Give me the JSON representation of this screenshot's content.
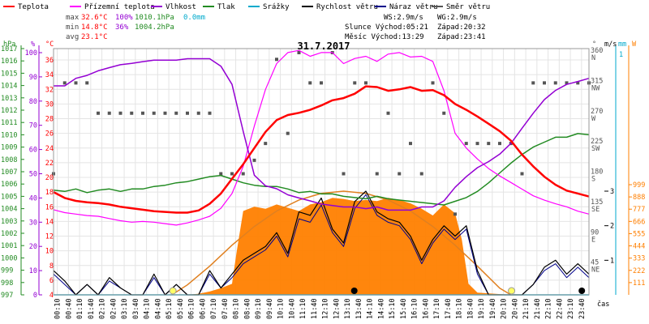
{
  "chart_data": {
    "type": "line",
    "title": "31.7.2017",
    "legend": [
      {
        "label": "Teplota",
        "color": "#ff0000"
      },
      {
        "label": "Přízemní teplota",
        "color": "#ff00ff"
      },
      {
        "label": "Vlhkost",
        "color": "#9400d3"
      },
      {
        "label": "Tlak",
        "color": "#228b22"
      },
      {
        "label": "Srážky",
        "color": "#00aacc"
      },
      {
        "label": "Rychlost větru",
        "color": "#000000"
      },
      {
        "label": "Náraz větru",
        "color": "#00008b"
      },
      {
        "label": "Směr větru",
        "color": "#555555"
      }
    ],
    "stats": {
      "max_label": "max",
      "max_temp": "32.6°C",
      "max_hum": "100%",
      "max_press": "1010.1hPa",
      "max_rain": "0.0mm",
      "min_label": "min",
      "min_temp": "14.8°C",
      "min_hum": "36%",
      "min_press": "1004.2hPa",
      "avg_label": "avg",
      "avg_temp": "23.1°C",
      "ws": "WS:2.9m/s",
      "wg": "WG:2.9m/s",
      "sun": "Slunce Východ:05:21",
      "sun_set": "Západ:20:32",
      "moon": "Měsíc Východ:13:29",
      "moon_set": "Západ:23:41"
    },
    "axes": {
      "hpa_unit": "hPa",
      "pct_unit": "%",
      "c_unit": "°C",
      "deg_unit": "°",
      "ms_unit": "m/s",
      "mm_unit": "mm",
      "w_unit": "W",
      "hpa": [
        997,
        998,
        999,
        1000,
        1001,
        1002,
        1003,
        1004,
        1005,
        1006,
        1007,
        1008,
        1009,
        1010,
        1011,
        1012,
        1013,
        1014,
        1015,
        1016,
        1017
      ],
      "pct": [
        0,
        10,
        20,
        30,
        40,
        50,
        60,
        70,
        80,
        90,
        100
      ],
      "temp": [
        4,
        6,
        8,
        10,
        12,
        14,
        16,
        18,
        20,
        22,
        24,
        26,
        28,
        30,
        32,
        34,
        36
      ],
      "dir": [
        {
          "v": 45,
          "lbl": "45",
          "cd": "NE"
        },
        {
          "v": 90,
          "lbl": "90",
          "cd": "E"
        },
        {
          "v": 135,
          "lbl": "135",
          "cd": "SE"
        },
        {
          "v": 180,
          "lbl": "180",
          "cd": "S"
        },
        {
          "v": 225,
          "lbl": "225",
          "cd": "SW"
        },
        {
          "v": 270,
          "lbl": "270",
          "cd": "W"
        },
        {
          "v": 315,
          "lbl": "315",
          "cd": "NW"
        },
        {
          "v": 360,
          "lbl": "360",
          "cd": "N"
        }
      ],
      "ms": [
        1,
        2,
        3
      ],
      "mm_top": "1",
      "solar": [
        111,
        222,
        333,
        444,
        555,
        666,
        777,
        888,
        999
      ],
      "x_ticks": [
        "00:10",
        "00:40",
        "01:10",
        "01:40",
        "02:10",
        "02:40",
        "03:10",
        "03:40",
        "04:10",
        "04:40",
        "05:10",
        "05:40",
        "06:10",
        "06:40",
        "07:10",
        "07:40",
        "08:10",
        "08:40",
        "09:10",
        "09:40",
        "10:10",
        "10:40",
        "11:10",
        "11:40",
        "12:10",
        "12:40",
        "13:10",
        "13:40",
        "14:10",
        "14:40",
        "15:10",
        "15:40",
        "16:10",
        "16:40",
        "17:10",
        "17:40",
        "18:10",
        "18:40",
        "19:10",
        "19:40",
        "20:10",
        "20:40",
        "21:10",
        "21:40",
        "22:10",
        "22:40",
        "23:10",
        "23:40"
      ],
      "x_label": "čas"
    },
    "series": [
      {
        "name": "Teplota",
        "color": "#ff0000",
        "unit": "°C",
        "x": [
          0,
          0.5,
          1,
          1.5,
          2,
          2.5,
          3,
          3.5,
          4,
          4.5,
          5,
          5.5,
          6,
          6.5,
          7,
          7.5,
          8,
          8.5,
          9,
          9.5,
          10,
          10.5,
          11,
          11.5,
          12,
          12.5,
          13,
          13.5,
          14,
          14.5,
          15,
          15.5,
          16,
          16.5,
          17,
          17.5,
          18,
          18.5,
          19,
          19.5,
          20,
          20.5,
          21,
          21.5,
          22,
          22.5,
          23,
          23.5,
          24
        ],
        "y": [
          18.0,
          17.2,
          16.8,
          16.6,
          16.5,
          16.3,
          16.0,
          15.8,
          15.6,
          15.4,
          15.3,
          15.2,
          15.2,
          15.5,
          16.4,
          17.8,
          19.8,
          21.8,
          24.0,
          26.2,
          27.8,
          28.5,
          28.8,
          29.2,
          29.8,
          30.5,
          30.8,
          31.4,
          32.4,
          32.3,
          31.8,
          32.0,
          32.3,
          31.8,
          31.9,
          31.2,
          30.0,
          29.2,
          28.3,
          27.3,
          26.3,
          25.0,
          23.1,
          21.5,
          20.1,
          19.0,
          18.2,
          17.8,
          17.4
        ]
      },
      {
        "name": "Přízemní teplota",
        "color": "#ff00ff",
        "unit": "°C",
        "x": [
          0,
          0.5,
          1,
          1.5,
          2,
          2.5,
          3,
          3.5,
          4,
          4.5,
          5,
          5.5,
          6,
          6.5,
          7,
          7.5,
          8,
          8.5,
          9,
          9.5,
          10,
          10.5,
          11,
          11.5,
          12,
          12.5,
          13,
          13.5,
          14,
          14.5,
          15,
          15.5,
          16,
          16.5,
          17,
          17.5,
          18,
          18.5,
          19,
          19.5,
          20,
          20.5,
          21,
          21.5,
          22,
          22.5,
          23,
          23.5,
          24
        ],
        "y": [
          15.6,
          15.2,
          15.0,
          14.8,
          14.7,
          14.4,
          14.1,
          13.9,
          14.0,
          13.9,
          13.7,
          13.5,
          13.8,
          14.2,
          14.7,
          15.8,
          17.8,
          21.5,
          27.0,
          32.0,
          35.5,
          37.0,
          37.3,
          36.5,
          37.0,
          37.0,
          35.5,
          36.2,
          36.5,
          35.8,
          36.8,
          37.0,
          36.4,
          36.5,
          35.8,
          31.8,
          26.0,
          24.0,
          22.5,
          21.2,
          20.2,
          19.3,
          18.4,
          17.5,
          16.9,
          16.4,
          16.0,
          15.4,
          15.0
        ]
      },
      {
        "name": "Vlhkost",
        "color": "#9400d3",
        "unit": "%",
        "x": [
          0,
          0.5,
          1,
          1.5,
          2,
          2.5,
          3,
          3.5,
          4,
          4.5,
          5,
          5.5,
          6,
          6.5,
          7,
          7.5,
          8,
          8.5,
          9,
          9.5,
          10,
          10.5,
          11,
          11.5,
          12,
          12.5,
          13,
          13.5,
          14,
          14.5,
          15,
          15.5,
          16,
          16.5,
          17,
          17.5,
          18,
          18.5,
          19,
          19.5,
          20,
          20.5,
          21,
          21.5,
          22,
          22.5,
          23,
          23.5,
          24
        ],
        "y": [
          86.3,
          86.3,
          89.4,
          90.6,
          92.5,
          93.8,
          95.0,
          95.6,
          96.3,
          96.9,
          96.9,
          96.9,
          97.5,
          97.5,
          97.5,
          94.4,
          86.9,
          67.5,
          49.4,
          45.0,
          43.8,
          41.3,
          40.0,
          38.8,
          37.5,
          36.9,
          36.3,
          36.3,
          35.6,
          36.3,
          35.0,
          35.0,
          35.0,
          36.3,
          36.3,
          38.8,
          44.4,
          48.8,
          52.5,
          55.0,
          58.1,
          62.5,
          68.8,
          75.0,
          80.6,
          84.4,
          86.9,
          88.1,
          89.4
        ]
      },
      {
        "name": "Tlak",
        "color": "#228b22",
        "unit": "hPa",
        "x": [
          0,
          0.5,
          1,
          1.5,
          2,
          2.5,
          3,
          3.5,
          4,
          4.5,
          5,
          5.5,
          6,
          6.5,
          7,
          7.5,
          8,
          8.5,
          9,
          9.5,
          10,
          10.5,
          11,
          11.5,
          12,
          12.5,
          13,
          13.5,
          14,
          14.5,
          15,
          15.5,
          16,
          16.5,
          17,
          17.5,
          18,
          18.5,
          19,
          19.5,
          20,
          20.5,
          21,
          21.5,
          22,
          22.5,
          23,
          23.5,
          24
        ],
        "y": [
          1005.5,
          1005.4,
          1005.6,
          1005.3,
          1005.5,
          1005.6,
          1005.4,
          1005.6,
          1005.6,
          1005.8,
          1005.9,
          1006.1,
          1006.2,
          1006.4,
          1006.6,
          1006.7,
          1006.4,
          1006.1,
          1005.9,
          1005.8,
          1005.8,
          1005.6,
          1005.3,
          1005.4,
          1005.2,
          1005.2,
          1005.0,
          1004.9,
          1004.8,
          1005.0,
          1004.8,
          1004.7,
          1004.6,
          1004.5,
          1004.4,
          1004.3,
          1004.6,
          1004.9,
          1005.4,
          1006.1,
          1006.9,
          1007.7,
          1008.4,
          1009.0,
          1009.4,
          1009.8,
          1009.8,
          1010.1,
          1010.0
        ]
      },
      {
        "name": "Srážky",
        "color": "#00aacc",
        "unit": "mm",
        "x": [
          0,
          24
        ],
        "y": [
          0,
          0
        ]
      },
      {
        "name": "Rychlost větru",
        "color": "#000000",
        "unit": "m/s",
        "x": [
          0,
          0.5,
          1,
          1.5,
          2,
          2.5,
          3,
          3.5,
          4,
          4.5,
          5,
          5.5,
          6,
          6.5,
          7,
          7.5,
          8,
          8.5,
          9,
          9.5,
          10,
          10.5,
          11,
          11.5,
          12,
          12.5,
          13,
          13.5,
          14,
          14.5,
          15,
          15.5,
          16,
          16.5,
          17,
          17.5,
          18,
          18.5,
          19,
          19.5,
          20,
          20.5,
          21,
          21.5,
          22,
          22.5,
          23,
          23.5,
          24
        ],
        "y": [
          0.7,
          0.4,
          0,
          0.3,
          0,
          0.5,
          0.2,
          0,
          0,
          0.6,
          0,
          0.3,
          0,
          0,
          0.7,
          0.2,
          0.6,
          1.0,
          1.2,
          1.4,
          1.8,
          1.2,
          2.4,
          2.3,
          2.8,
          1.9,
          1.5,
          2.7,
          3.0,
          2.4,
          2.2,
          2.1,
          1.7,
          1.0,
          1.6,
          2.0,
          1.7,
          2.0,
          0.7,
          0,
          0,
          0,
          0,
          0.3,
          0.8,
          1.0,
          0.6,
          0.9,
          0.6
        ]
      },
      {
        "name": "Náraz větru",
        "color": "#00008b",
        "unit": "m/s",
        "x": [
          0,
          0.5,
          1,
          1.5,
          2,
          2.5,
          3,
          3.5,
          4,
          4.5,
          5,
          5.5,
          6,
          6.5,
          7,
          7.5,
          8,
          8.5,
          9,
          9.5,
          10,
          10.5,
          11,
          11.5,
          12,
          12.5,
          13,
          13.5,
          14,
          14.5,
          15,
          15.5,
          16,
          16.5,
          17,
          17.5,
          18,
          18.5,
          19,
          19.5,
          20,
          20.5,
          21,
          21.5,
          22,
          22.5,
          23,
          23.5,
          24
        ],
        "y": [
          0.6,
          0.3,
          0,
          0.3,
          0,
          0.4,
          0.2,
          0,
          0,
          0.5,
          0,
          0.3,
          0,
          0,
          0.6,
          0.2,
          0.5,
          0.9,
          1.1,
          1.3,
          1.7,
          1.1,
          2.2,
          2.1,
          2.6,
          1.8,
          1.4,
          2.5,
          2.9,
          2.3,
          2.1,
          2.0,
          1.6,
          0.9,
          1.5,
          1.9,
          1.6,
          1.9,
          0.6,
          0,
          0,
          0,
          0,
          0.3,
          0.7,
          0.9,
          0.5,
          0.8,
          0.5
        ]
      },
      {
        "name": "Směr větru",
        "color": "#555555",
        "unit": "°",
        "x": [
          0,
          0.5,
          1,
          1.5,
          2,
          2.5,
          3,
          3.5,
          4,
          4.5,
          5,
          5.5,
          6,
          6.5,
          7,
          7.5,
          8,
          8.5,
          9,
          9.5,
          10,
          10.5,
          11,
          11.5,
          12,
          12.5,
          13,
          13.5,
          14,
          14.5,
          15,
          15.5,
          16,
          16.5,
          17,
          17.5,
          18,
          18.5,
          19,
          19.5,
          20,
          20.5,
          21,
          21.5,
          22,
          22.5,
          23,
          23.5,
          24
        ],
        "y": [
          180,
          315,
          315,
          315,
          270,
          270,
          270,
          270,
          270,
          270,
          270,
          270,
          270,
          270,
          270,
          180,
          180,
          180,
          200,
          225,
          350,
          240,
          360,
          315,
          315,
          360,
          180,
          315,
          315,
          180,
          270,
          180,
          225,
          180,
          315,
          270,
          120,
          225,
          225,
          225,
          225,
          225,
          180,
          315,
          315,
          315,
          315,
          315,
          315
        ]
      },
      {
        "name": "Solar",
        "color": "#ff7f00",
        "unit": "W",
        "x": [
          0,
          5.3,
          6,
          6.5,
          7,
          7.5,
          8,
          8.2,
          8.5,
          9,
          9.5,
          10,
          10.5,
          11,
          11.5,
          12,
          12.5,
          13,
          13.5,
          14,
          14.5,
          15,
          15.5,
          16,
          16.5,
          17,
          17.5,
          18,
          18.3,
          18.6,
          19,
          20.5,
          24
        ],
        "y": [
          0,
          0,
          0,
          10,
          30,
          60,
          100,
          380,
          760,
          800,
          780,
          820,
          790,
          760,
          820,
          840,
          880,
          870,
          850,
          860,
          850,
          880,
          860,
          830,
          780,
          720,
          820,
          740,
          500,
          100,
          20,
          0,
          0
        ]
      },
      {
        "name": "Solar clear-sky",
        "color": "#e08020",
        "unit": "W",
        "x": [
          5.3,
          6,
          7,
          8,
          9,
          10,
          11,
          12,
          13,
          14,
          15,
          16,
          17,
          18,
          19,
          20,
          20.5
        ],
        "y": [
          0,
          90,
          260,
          450,
          620,
          760,
          860,
          920,
          940,
          920,
          860,
          760,
          620,
          450,
          260,
          60,
          0
        ]
      }
    ],
    "markers": {
      "sun_rise": 5.35,
      "sun_set": 20.53,
      "moon_rise": 13.48,
      "moon_set": 23.68
    }
  }
}
